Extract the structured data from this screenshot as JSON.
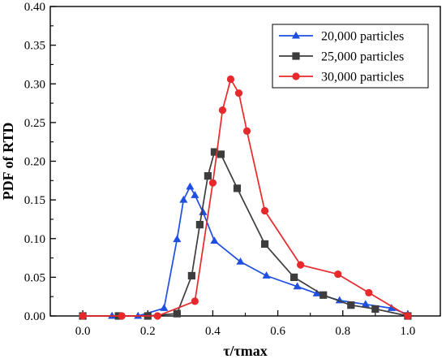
{
  "chart_data": {
    "type": "line",
    "title": "",
    "xlabel": "τ/τmax",
    "ylabel": "PDF of RTD",
    "xlim": [
      -0.1,
      1.1
    ],
    "ylim": [
      0,
      0.4
    ],
    "x_ticks": [
      0.0,
      0.2,
      0.4,
      0.6,
      0.8,
      1.0
    ],
    "x_tick_labels": [
      "0.0",
      "0.2",
      "0.4",
      "0.6",
      "0.8",
      "1.0"
    ],
    "y_ticks": [
      0.0,
      0.05,
      0.1,
      0.15,
      0.2,
      0.25,
      0.3,
      0.35,
      0.4
    ],
    "y_tick_labels": [
      "0.00",
      "0.05",
      "0.10",
      "0.15",
      "0.20",
      "0.25",
      "0.30",
      "0.35",
      "0.40"
    ],
    "grid": false,
    "legend_position": "top-right",
    "series": [
      {
        "name": "20,000 particles",
        "color": "#1f4fe0",
        "marker": "triangle",
        "points": [
          [
            0.0,
            0.0
          ],
          [
            0.09,
            0.0
          ],
          [
            0.17,
            0.0
          ],
          [
            0.25,
            0.01
          ],
          [
            0.29,
            0.099
          ],
          [
            0.31,
            0.15
          ],
          [
            0.33,
            0.167
          ],
          [
            0.345,
            0.156
          ],
          [
            0.37,
            0.134
          ],
          [
            0.405,
            0.097
          ],
          [
            0.485,
            0.07
          ],
          [
            0.565,
            0.052
          ],
          [
            0.66,
            0.038
          ],
          [
            0.72,
            0.029
          ],
          [
            0.79,
            0.02
          ],
          [
            0.87,
            0.015
          ],
          [
            0.95,
            0.01
          ],
          [
            1.0,
            0.002
          ]
        ]
      },
      {
        "name": "25,000 particles",
        "color": "#3d3d3d",
        "marker": "square",
        "points": [
          [
            0.0,
            0.0
          ],
          [
            0.11,
            0.0
          ],
          [
            0.2,
            0.0
          ],
          [
            0.29,
            0.003
          ],
          [
            0.335,
            0.052
          ],
          [
            0.36,
            0.118
          ],
          [
            0.385,
            0.181
          ],
          [
            0.405,
            0.212
          ],
          [
            0.425,
            0.209
          ],
          [
            0.475,
            0.165
          ],
          [
            0.56,
            0.093
          ],
          [
            0.65,
            0.05
          ],
          [
            0.74,
            0.027
          ],
          [
            0.825,
            0.014
          ],
          [
            0.9,
            0.009
          ],
          [
            1.0,
            0.0
          ]
        ]
      },
      {
        "name": "30,000 particles",
        "color": "#e8282b",
        "marker": "circle",
        "points": [
          [
            0.0,
            0.0
          ],
          [
            0.12,
            0.0
          ],
          [
            0.23,
            0.0
          ],
          [
            0.345,
            0.019
          ],
          [
            0.4,
            0.172
          ],
          [
            0.43,
            0.266
          ],
          [
            0.455,
            0.306
          ],
          [
            0.48,
            0.288
          ],
          [
            0.505,
            0.239
          ],
          [
            0.56,
            0.136
          ],
          [
            0.67,
            0.066
          ],
          [
            0.785,
            0.054
          ],
          [
            0.88,
            0.03
          ],
          [
            1.0,
            0.0
          ]
        ]
      }
    ]
  }
}
